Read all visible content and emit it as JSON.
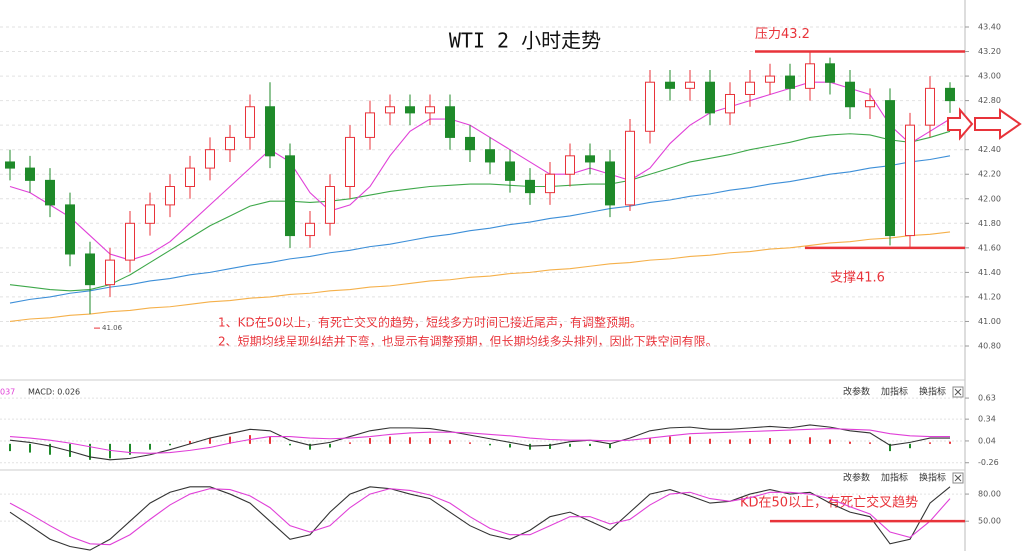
{
  "chart_data": [
    {
      "type": "candlestick",
      "title": "WTI 2 小时走势",
      "open": [
        42.3,
        42.25,
        42.15,
        41.95,
        41.55,
        41.3,
        41.5,
        41.8,
        41.95,
        42.1,
        42.25,
        42.4,
        42.5,
        42.75,
        42.35,
        41.7,
        41.8,
        42.1,
        42.5,
        42.7,
        42.75,
        42.7,
        42.75,
        42.5,
        42.4,
        42.3,
        42.15,
        42.05,
        42.2,
        42.35,
        42.3,
        41.95,
        42.55,
        42.95,
        42.9,
        42.95,
        42.7,
        42.85,
        42.95,
        43.0,
        42.9,
        43.1,
        42.95,
        42.75,
        42.8,
        41.7,
        42.6,
        42.9
      ],
      "high": [
        42.4,
        42.35,
        42.25,
        42.05,
        41.65,
        41.6,
        41.9,
        42.05,
        42.2,
        42.35,
        42.5,
        42.6,
        42.85,
        42.95,
        42.45,
        41.9,
        42.2,
        42.6,
        42.8,
        42.85,
        42.85,
        42.85,
        42.85,
        42.6,
        42.5,
        42.4,
        42.25,
        42.3,
        42.45,
        42.45,
        42.4,
        42.65,
        43.05,
        43.05,
        43.05,
        43.05,
        42.95,
        43.05,
        43.1,
        43.1,
        43.2,
        43.15,
        43.05,
        42.9,
        42.9,
        42.7,
        43.0,
        42.95
      ],
      "low": [
        42.15,
        42.05,
        41.85,
        41.45,
        41.06,
        41.2,
        41.4,
        41.7,
        41.85,
        42.0,
        42.15,
        42.3,
        42.4,
        42.25,
        41.6,
        41.6,
        41.7,
        42.0,
        42.4,
        42.6,
        42.6,
        42.6,
        42.4,
        42.3,
        42.2,
        42.05,
        41.95,
        41.95,
        42.1,
        42.2,
        41.85,
        41.9,
        42.45,
        42.8,
        42.8,
        42.6,
        42.6,
        42.75,
        42.85,
        42.8,
        42.8,
        42.85,
        42.65,
        42.65,
        41.62,
        41.6,
        42.5,
        42.7
      ],
      "close": [
        42.25,
        42.15,
        41.95,
        41.55,
        41.3,
        41.5,
        41.8,
        41.95,
        42.1,
        42.25,
        42.4,
        42.5,
        42.75,
        42.35,
        41.7,
        41.8,
        42.1,
        42.5,
        42.7,
        42.75,
        42.7,
        42.75,
        42.5,
        42.4,
        42.3,
        42.15,
        42.05,
        42.2,
        42.35,
        42.3,
        41.95,
        42.55,
        42.95,
        42.9,
        42.95,
        42.7,
        42.85,
        42.95,
        43.0,
        42.9,
        43.1,
        42.95,
        42.75,
        42.8,
        41.7,
        42.6,
        42.9,
        42.8
      ],
      "up_color": "#e8333a",
      "down_color": "#1f8a2a",
      "series": [
        {
          "color": "#f5b04a",
          "values": [
            41.0,
            41.02,
            41.03,
            41.05,
            41.06,
            41.08,
            41.09,
            41.11,
            41.12,
            41.14,
            41.16,
            41.17,
            41.19,
            41.2,
            41.22,
            41.23,
            41.25,
            41.26,
            41.28,
            41.29,
            41.31,
            41.33,
            41.34,
            41.36,
            41.37,
            41.39,
            41.4,
            41.42,
            41.43,
            41.45,
            41.47,
            41.48,
            41.5,
            41.51,
            41.53,
            41.54,
            41.56,
            41.57,
            41.59,
            41.6,
            41.62,
            41.64,
            41.65,
            41.67,
            41.68,
            41.7,
            41.71,
            41.73
          ]
        },
        {
          "color": "#3d8fd8",
          "values": [
            41.15,
            41.18,
            41.2,
            41.23,
            41.25,
            41.28,
            41.3,
            41.33,
            41.35,
            41.38,
            41.4,
            41.43,
            41.46,
            41.48,
            41.51,
            41.53,
            41.56,
            41.58,
            41.61,
            41.63,
            41.66,
            41.69,
            41.71,
            41.74,
            41.76,
            41.79,
            41.81,
            41.84,
            41.86,
            41.89,
            41.92,
            41.94,
            41.97,
            41.99,
            42.02,
            42.04,
            42.07,
            42.09,
            42.12,
            42.14,
            42.17,
            42.2,
            42.22,
            42.25,
            42.27,
            42.3,
            42.32,
            42.35
          ]
        },
        {
          "color": "#3ea84a",
          "values": [
            41.3,
            41.28,
            41.26,
            41.25,
            41.26,
            41.3,
            41.38,
            41.48,
            41.58,
            41.68,
            41.78,
            41.86,
            41.94,
            41.98,
            41.98,
            41.97,
            41.98,
            42.0,
            42.03,
            42.06,
            42.08,
            42.1,
            42.11,
            42.12,
            42.12,
            42.11,
            42.1,
            42.1,
            42.11,
            42.12,
            42.12,
            42.15,
            42.2,
            42.25,
            42.3,
            42.33,
            42.36,
            42.4,
            42.43,
            42.46,
            42.5,
            42.52,
            42.53,
            42.52,
            42.48,
            42.46,
            42.5,
            42.55
          ]
        },
        {
          "color": "#e040d8",
          "values": [
            42.1,
            42.05,
            41.95,
            41.85,
            41.7,
            41.55,
            41.5,
            41.55,
            41.65,
            41.8,
            41.95,
            42.1,
            42.25,
            42.4,
            42.3,
            42.05,
            41.9,
            41.95,
            42.1,
            42.35,
            42.55,
            42.65,
            42.65,
            42.6,
            42.5,
            42.4,
            42.3,
            42.2,
            42.2,
            42.25,
            42.2,
            42.15,
            42.25,
            42.45,
            42.6,
            42.7,
            42.75,
            42.8,
            42.85,
            42.9,
            42.95,
            42.95,
            42.9,
            42.85,
            42.6,
            42.45,
            42.55,
            42.65
          ]
        }
      ],
      "ylim": [
        40.8,
        43.4
      ],
      "yticks": [
        {
          "value": 43.4,
          "label": "43.40"
        },
        {
          "value": 43.2,
          "label": "43.20"
        },
        {
          "value": 43.0,
          "label": "43.00"
        },
        {
          "value": 42.8,
          "label": "42.80"
        },
        {
          "value": 42.6,
          "label": "42.60"
        },
        {
          "value": 42.4,
          "label": "42.40"
        },
        {
          "value": 42.2,
          "label": "42.20"
        },
        {
          "value": 42.0,
          "label": "42.00"
        },
        {
          "value": 41.8,
          "label": "41.80"
        },
        {
          "value": 41.6,
          "label": "41.60"
        },
        {
          "value": 41.4,
          "label": "41.40"
        },
        {
          "value": 41.2,
          "label": "41.20"
        },
        {
          "value": 41.0,
          "label": "41.00"
        },
        {
          "value": 40.8,
          "label": "40.80"
        }
      ],
      "levels": [
        {
          "label": "压力43.2",
          "value": 43.2
        },
        {
          "label": "支撑41.6",
          "value": 41.6
        }
      ],
      "low_label": {
        "value": 41.06,
        "label": "41.06"
      },
      "annotations": [
        "1、KD在50以上，有死亡交叉的趋势，短线多方时间已接近尾声，有调整预期。",
        "2、短期均线呈现纠结并下弯，也显示有调整预期，但长期均线多头排列，因此下跌空间有限。"
      ]
    },
    {
      "type": "macd",
      "label_left": "037",
      "label": "MACD: 0.026",
      "values": [
        -0.1,
        -0.12,
        -0.15,
        -0.18,
        -0.22,
        -0.2,
        -0.15,
        -0.08,
        -0.02,
        0.04,
        0.08,
        0.1,
        0.12,
        0.1,
        -0.02,
        -0.08,
        -0.05,
        0.02,
        0.08,
        0.1,
        0.09,
        0.08,
        0.05,
        0.02,
        -0.02,
        -0.05,
        -0.08,
        -0.07,
        -0.04,
        -0.03,
        -0.06,
        0.0,
        0.08,
        0.1,
        0.1,
        0.07,
        0.06,
        0.07,
        0.08,
        0.06,
        0.09,
        0.06,
        0.03,
        0.02,
        -0.1,
        -0.06,
        0.02,
        0.03
      ],
      "up_color": "#e8333a",
      "down_color": "#1f8a2a",
      "series": [
        {
          "color": "#333333",
          "values": [
            0.05,
            0.02,
            -0.03,
            -0.1,
            -0.18,
            -0.22,
            -0.2,
            -0.15,
            -0.08,
            0.0,
            0.08,
            0.14,
            0.2,
            0.18,
            0.05,
            -0.02,
            0.02,
            0.1,
            0.18,
            0.22,
            0.22,
            0.21,
            0.17,
            0.12,
            0.07,
            0.02,
            -0.03,
            -0.02,
            0.03,
            0.05,
            0.0,
            0.08,
            0.18,
            0.22,
            0.23,
            0.2,
            0.2,
            0.22,
            0.24,
            0.22,
            0.26,
            0.23,
            0.18,
            0.15,
            -0.02,
            0.02,
            0.08,
            0.08
          ]
        },
        {
          "color": "#e040d8",
          "values": [
            0.1,
            0.08,
            0.05,
            0.01,
            -0.04,
            -0.09,
            -0.12,
            -0.13,
            -0.12,
            -0.09,
            -0.05,
            0.01,
            0.06,
            0.1,
            0.1,
            0.08,
            0.07,
            0.08,
            0.1,
            0.13,
            0.15,
            0.16,
            0.16,
            0.15,
            0.13,
            0.11,
            0.08,
            0.06,
            0.05,
            0.05,
            0.04,
            0.05,
            0.08,
            0.11,
            0.14,
            0.15,
            0.16,
            0.17,
            0.18,
            0.19,
            0.2,
            0.21,
            0.2,
            0.19,
            0.14,
            0.11,
            0.1,
            0.1
          ]
        }
      ],
      "ylim": [
        -0.36,
        0.81
      ],
      "yticks": [
        0.63,
        0.34,
        0.04,
        -0.26
      ],
      "toolbar": [
        "改参数",
        "加指标",
        "换指标"
      ]
    },
    {
      "type": "line",
      "annotation": "KD在50以上，有死亡交叉趋势",
      "series": [
        {
          "color": "#333333",
          "values": [
            60,
            45,
            30,
            22,
            18,
            30,
            50,
            70,
            82,
            88,
            88,
            80,
            70,
            50,
            30,
            35,
            60,
            80,
            88,
            86,
            80,
            75,
            60,
            45,
            35,
            30,
            40,
            55,
            60,
            50,
            40,
            60,
            80,
            85,
            78,
            70,
            72,
            80,
            85,
            80,
            82,
            70,
            60,
            55,
            25,
            30,
            70,
            88
          ]
        },
        {
          "color": "#e040d8",
          "values": [
            70,
            58,
            45,
            33,
            25,
            24,
            35,
            52,
            68,
            80,
            86,
            85,
            78,
            65,
            45,
            38,
            45,
            65,
            80,
            86,
            84,
            79,
            70,
            55,
            42,
            35,
            35,
            45,
            55,
            55,
            47,
            52,
            68,
            80,
            82,
            75,
            72,
            76,
            82,
            82,
            80,
            75,
            66,
            58,
            38,
            32,
            50,
            75
          ]
        }
      ],
      "ylim": [
        17,
        100
      ],
      "yticks": [
        {
          "value": 80,
          "label": "80.00"
        },
        {
          "value": 50,
          "label": "50.00"
        }
      ],
      "toolbar": [
        "改参数",
        "加指标",
        "换指标"
      ]
    }
  ]
}
